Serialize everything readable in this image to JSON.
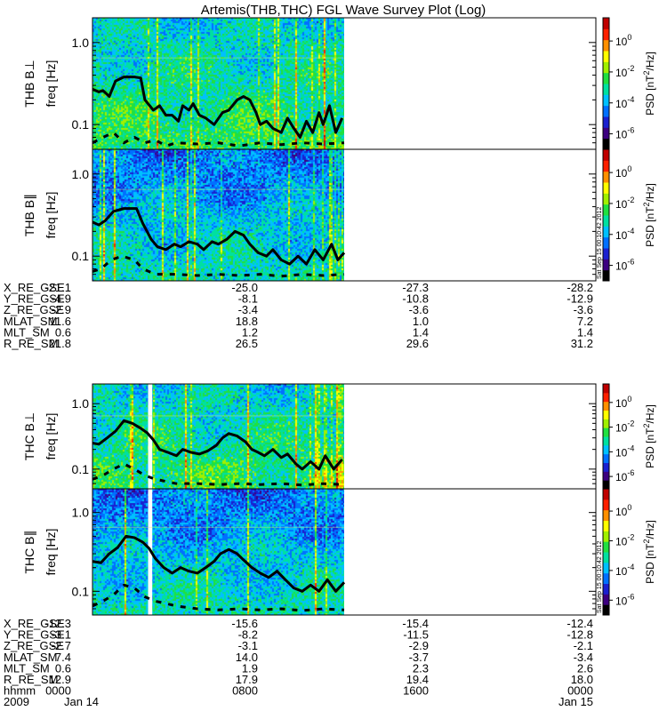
{
  "title": "Artemis(THB,THC) FGL Wave Survey Plot (Log)",
  "stamp": "Sat Sep 15 00:10:42 2012",
  "colorbar": {
    "label_prefix": "PSD [nT",
    "label_exp": "2",
    "label_suffix": "/Hz]",
    "ticks": [
      {
        "base": "10",
        "exp": "0",
        "log": 0
      },
      {
        "base": "10",
        "exp": "-2",
        "log": -2
      },
      {
        "base": "10",
        "exp": "-4",
        "log": -4
      },
      {
        "base": "10",
        "exp": "-6",
        "log": -6
      }
    ],
    "range": [
      -7,
      1.5
    ],
    "colors": [
      "#000000",
      "#3c0080",
      "#1a20d0",
      "#0070ff",
      "#00c0ff",
      "#00e0a0",
      "#20e040",
      "#a0f000",
      "#ffff00",
      "#ff9000",
      "#ff2000",
      "#c00000"
    ]
  },
  "chart_data": [
    {
      "type": "heatmap",
      "panel": "thb-perp",
      "ylabel": "THB B⊥",
      "ylabel2": "freq [Hz]",
      "yscale": "log",
      "ylim": [
        0.05,
        2.0
      ],
      "yticks": [
        {
          "label": "1.0",
          "value": 1.0
        },
        {
          "label": "0.1",
          "value": 0.1
        }
      ],
      "xlim": [
        0,
        24
      ],
      "data_xrange": [
        0.0,
        12.0
      ],
      "line": [
        [
          0.0,
          0.27
        ],
        [
          0.3,
          0.25
        ],
        [
          0.5,
          0.26
        ],
        [
          0.8,
          0.22
        ],
        [
          1.1,
          0.34
        ],
        [
          1.5,
          0.38
        ],
        [
          2.0,
          0.38
        ],
        [
          2.3,
          0.37
        ],
        [
          2.5,
          0.2
        ],
        [
          2.9,
          0.15
        ],
        [
          3.2,
          0.17
        ],
        [
          3.5,
          0.13
        ],
        [
          3.8,
          0.13
        ],
        [
          4.1,
          0.11
        ],
        [
          4.3,
          0.17
        ],
        [
          4.6,
          0.15
        ],
        [
          4.8,
          0.18
        ],
        [
          5.1,
          0.13
        ],
        [
          5.4,
          0.12
        ],
        [
          5.8,
          0.1
        ],
        [
          6.2,
          0.14
        ],
        [
          6.5,
          0.15
        ],
        [
          6.9,
          0.2
        ],
        [
          7.2,
          0.22
        ],
        [
          7.5,
          0.2
        ],
        [
          7.8,
          0.14
        ],
        [
          8.0,
          0.1
        ],
        [
          8.3,
          0.11
        ],
        [
          8.6,
          0.09
        ],
        [
          9.0,
          0.08
        ],
        [
          9.3,
          0.12
        ],
        [
          9.6,
          0.09
        ],
        [
          9.9,
          0.07
        ],
        [
          10.2,
          0.11
        ],
        [
          10.5,
          0.08
        ],
        [
          10.8,
          0.14
        ],
        [
          11.0,
          0.1
        ],
        [
          11.3,
          0.17
        ],
        [
          11.6,
          0.08
        ],
        [
          11.9,
          0.12
        ]
      ],
      "dashed": [
        [
          0.0,
          0.06
        ],
        [
          0.5,
          0.07
        ],
        [
          1.0,
          0.08
        ],
        [
          1.5,
          0.06
        ],
        [
          2.0,
          0.07
        ],
        [
          2.5,
          0.06
        ],
        [
          3.0,
          0.065
        ],
        [
          3.5,
          0.055
        ],
        [
          4.0,
          0.06
        ],
        [
          5.0,
          0.058
        ],
        [
          6.0,
          0.06
        ],
        [
          7.0,
          0.055
        ],
        [
          8.0,
          0.06
        ],
        [
          9.0,
          0.057
        ],
        [
          10.0,
          0.06
        ],
        [
          11.0,
          0.058
        ],
        [
          12.0,
          0.06
        ]
      ],
      "colorbar_label": "PSD [nT2/Hz]"
    },
    {
      "type": "heatmap",
      "panel": "thb-par",
      "ylabel": "THB B∥",
      "ylabel2": "freq [Hz]",
      "yscale": "log",
      "ylim": [
        0.05,
        2.0
      ],
      "yticks": [
        {
          "label": "1.0",
          "value": 1.0
        },
        {
          "label": "0.1",
          "value": 0.1
        }
      ],
      "xlim": [
        0,
        24
      ],
      "data_xrange": [
        0.0,
        12.0
      ],
      "line": [
        [
          0.0,
          0.26
        ],
        [
          0.3,
          0.24
        ],
        [
          0.6,
          0.27
        ],
        [
          1.0,
          0.35
        ],
        [
          1.5,
          0.38
        ],
        [
          2.1,
          0.38
        ],
        [
          2.4,
          0.25
        ],
        [
          2.8,
          0.16
        ],
        [
          3.1,
          0.13
        ],
        [
          3.5,
          0.12
        ],
        [
          3.9,
          0.14
        ],
        [
          4.2,
          0.13
        ],
        [
          4.6,
          0.15
        ],
        [
          5.0,
          0.14
        ],
        [
          5.3,
          0.12
        ],
        [
          5.7,
          0.15
        ],
        [
          6.0,
          0.14
        ],
        [
          6.4,
          0.16
        ],
        [
          6.8,
          0.2
        ],
        [
          7.2,
          0.18
        ],
        [
          7.5,
          0.14
        ],
        [
          7.9,
          0.11
        ],
        [
          8.3,
          0.1
        ],
        [
          8.6,
          0.12
        ],
        [
          9.0,
          0.09
        ],
        [
          9.4,
          0.08
        ],
        [
          9.8,
          0.1
        ],
        [
          10.2,
          0.08
        ],
        [
          10.6,
          0.12
        ],
        [
          11.0,
          0.09
        ],
        [
          11.4,
          0.14
        ],
        [
          11.7,
          0.09
        ],
        [
          12.0,
          0.11
        ]
      ],
      "dashed": [
        [
          0.0,
          0.065
        ],
        [
          0.4,
          0.07
        ],
        [
          0.9,
          0.09
        ],
        [
          1.4,
          0.1
        ],
        [
          2.0,
          0.09
        ],
        [
          2.4,
          0.07
        ],
        [
          3.0,
          0.06
        ],
        [
          4.0,
          0.06
        ],
        [
          5.0,
          0.058
        ],
        [
          6.0,
          0.06
        ],
        [
          7.0,
          0.058
        ],
        [
          8.0,
          0.06
        ],
        [
          9.0,
          0.057
        ],
        [
          10.0,
          0.06
        ],
        [
          11.0,
          0.058
        ],
        [
          12.0,
          0.06
        ]
      ],
      "colorbar_label": "PSD [nT2/Hz]"
    },
    {
      "type": "heatmap",
      "panel": "thc-perp",
      "ylabel": "THC B⊥",
      "ylabel2": "freq [Hz]",
      "yscale": "log",
      "ylim": [
        0.05,
        2.0
      ],
      "yticks": [
        {
          "label": "1.0",
          "value": 1.0
        },
        {
          "label": "0.1",
          "value": 0.1
        }
      ],
      "xlim": [
        0,
        24
      ],
      "data_xrange": [
        0.0,
        12.0
      ],
      "gap": [
        2.65,
        2.85
      ],
      "line": [
        [
          0.0,
          0.25
        ],
        [
          0.3,
          0.24
        ],
        [
          0.7,
          0.3
        ],
        [
          1.1,
          0.38
        ],
        [
          1.5,
          0.55
        ],
        [
          1.9,
          0.5
        ],
        [
          2.3,
          0.42
        ],
        [
          2.6,
          0.36
        ],
        [
          2.9,
          0.28
        ],
        [
          3.2,
          0.2
        ],
        [
          3.6,
          0.18
        ],
        [
          4.0,
          0.16
        ],
        [
          4.3,
          0.2
        ],
        [
          4.7,
          0.18
        ],
        [
          5.1,
          0.17
        ],
        [
          5.5,
          0.19
        ],
        [
          5.9,
          0.23
        ],
        [
          6.2,
          0.3
        ],
        [
          6.5,
          0.35
        ],
        [
          6.9,
          0.32
        ],
        [
          7.3,
          0.26
        ],
        [
          7.6,
          0.2
        ],
        [
          7.9,
          0.18
        ],
        [
          8.2,
          0.16
        ],
        [
          8.6,
          0.2
        ],
        [
          9.0,
          0.15
        ],
        [
          9.3,
          0.17
        ],
        [
          9.7,
          0.12
        ],
        [
          10.0,
          0.1
        ],
        [
          10.4,
          0.13
        ],
        [
          10.8,
          0.1
        ],
        [
          11.1,
          0.16
        ],
        [
          11.5,
          0.1
        ],
        [
          11.9,
          0.14
        ]
      ],
      "dashed": [
        [
          0.0,
          0.07
        ],
        [
          0.5,
          0.08
        ],
        [
          1.0,
          0.1
        ],
        [
          1.5,
          0.12
        ],
        [
          2.0,
          0.1
        ],
        [
          2.5,
          0.08
        ],
        [
          3.0,
          0.07
        ],
        [
          3.5,
          0.065
        ],
        [
          4.0,
          0.06
        ],
        [
          5.0,
          0.06
        ],
        [
          6.0,
          0.058
        ],
        [
          7.0,
          0.06
        ],
        [
          8.0,
          0.058
        ],
        [
          9.0,
          0.06
        ],
        [
          10.0,
          0.057
        ],
        [
          11.0,
          0.06
        ],
        [
          12.0,
          0.058
        ]
      ],
      "colorbar_label": "PSD [nT2/Hz]"
    },
    {
      "type": "heatmap",
      "panel": "thc-par",
      "ylabel": "THC B∥",
      "ylabel2": "freq [Hz]",
      "yscale": "log",
      "ylim": [
        0.05,
        2.0
      ],
      "yticks": [
        {
          "label": "1.0",
          "value": 1.0
        },
        {
          "label": "0.1",
          "value": 0.1
        }
      ],
      "xlim": [
        0,
        24
      ],
      "data_xrange": [
        0.0,
        12.0
      ],
      "gap": [
        2.65,
        2.85
      ],
      "line": [
        [
          0.0,
          0.24
        ],
        [
          0.4,
          0.23
        ],
        [
          0.8,
          0.3
        ],
        [
          1.2,
          0.36
        ],
        [
          1.6,
          0.5
        ],
        [
          2.0,
          0.48
        ],
        [
          2.4,
          0.42
        ],
        [
          2.7,
          0.35
        ],
        [
          3.0,
          0.26
        ],
        [
          3.4,
          0.2
        ],
        [
          3.8,
          0.17
        ],
        [
          4.2,
          0.2
        ],
        [
          4.6,
          0.18
        ],
        [
          5.0,
          0.17
        ],
        [
          5.4,
          0.2
        ],
        [
          5.8,
          0.24
        ],
        [
          6.1,
          0.3
        ],
        [
          6.5,
          0.34
        ],
        [
          6.9,
          0.3
        ],
        [
          7.2,
          0.25
        ],
        [
          7.6,
          0.2
        ],
        [
          8.0,
          0.17
        ],
        [
          8.4,
          0.15
        ],
        [
          8.8,
          0.18
        ],
        [
          9.2,
          0.14
        ],
        [
          9.6,
          0.11
        ],
        [
          10.0,
          0.1
        ],
        [
          10.4,
          0.12
        ],
        [
          10.8,
          0.1
        ],
        [
          11.2,
          0.14
        ],
        [
          11.6,
          0.1
        ],
        [
          12.0,
          0.13
        ]
      ],
      "dashed": [
        [
          0.0,
          0.065
        ],
        [
          0.5,
          0.075
        ],
        [
          1.0,
          0.09
        ],
        [
          1.5,
          0.12
        ],
        [
          2.0,
          0.11
        ],
        [
          2.5,
          0.085
        ],
        [
          3.0,
          0.075
        ],
        [
          3.5,
          0.07
        ],
        [
          4.0,
          0.065
        ],
        [
          5.0,
          0.06
        ],
        [
          6.0,
          0.058
        ],
        [
          7.0,
          0.06
        ],
        [
          8.0,
          0.058
        ],
        [
          9.0,
          0.06
        ],
        [
          10.0,
          0.057
        ],
        [
          11.0,
          0.06
        ],
        [
          12.0,
          0.058
        ]
      ],
      "colorbar_label": "PSD [nT2/Hz]"
    }
  ],
  "ephemeris": [
    {
      "block": "thb",
      "rows": [
        {
          "label": "X_RE_GSE",
          "values": [
            "-21.1",
            "-25.0",
            "-27.3",
            "-28.2"
          ]
        },
        {
          "label": "Y_RE_GSE",
          "values": [
            "-4.9",
            "-8.1",
            "-10.8",
            "-12.9"
          ]
        },
        {
          "label": "Z_RE_GSE",
          "values": [
            "-2.9",
            "-3.4",
            "-3.6",
            "-3.6"
          ]
        },
        {
          "label": "MLAT_SM",
          "values": [
            "11.6",
            "18.8",
            "1.0",
            "7.2"
          ]
        },
        {
          "label": "MLT_SM",
          "values": [
            "0.6",
            "1.2",
            "1.4",
            "1.4"
          ]
        },
        {
          "label": "R_RE_SM",
          "values": [
            "21.8",
            "26.5",
            "29.6",
            "31.2"
          ]
        }
      ]
    },
    {
      "block": "thc",
      "rows": [
        {
          "label": "X_RE_GSE",
          "values": [
            "-12.3",
            "-15.6",
            "-15.4",
            "-12.4"
          ]
        },
        {
          "label": "Y_RE_GSE",
          "values": [
            "-3.1",
            "-8.2",
            "-11.5",
            "-12.8"
          ]
        },
        {
          "label": "Z_RE_GSE",
          "values": [
            "-2.7",
            "-3.1",
            "-2.9",
            "-2.1"
          ]
        },
        {
          "label": "MLAT_SM",
          "values": [
            "7.4",
            "14.0",
            "-3.7",
            "-3.4"
          ]
        },
        {
          "label": "MLT_SM",
          "values": [
            "0.6",
            "1.9",
            "2.3",
            "2.6"
          ]
        },
        {
          "label": "R_RE_SM",
          "values": [
            "12.9",
            "17.9",
            "19.4",
            "18.0"
          ]
        },
        {
          "label": "hhmm",
          "values": [
            "0000",
            "0800",
            "1600",
            "0000"
          ]
        },
        {
          "label": "2009",
          "values": [
            "Jan 14",
            "",
            "",
            "Jan 15"
          ]
        }
      ]
    }
  ]
}
